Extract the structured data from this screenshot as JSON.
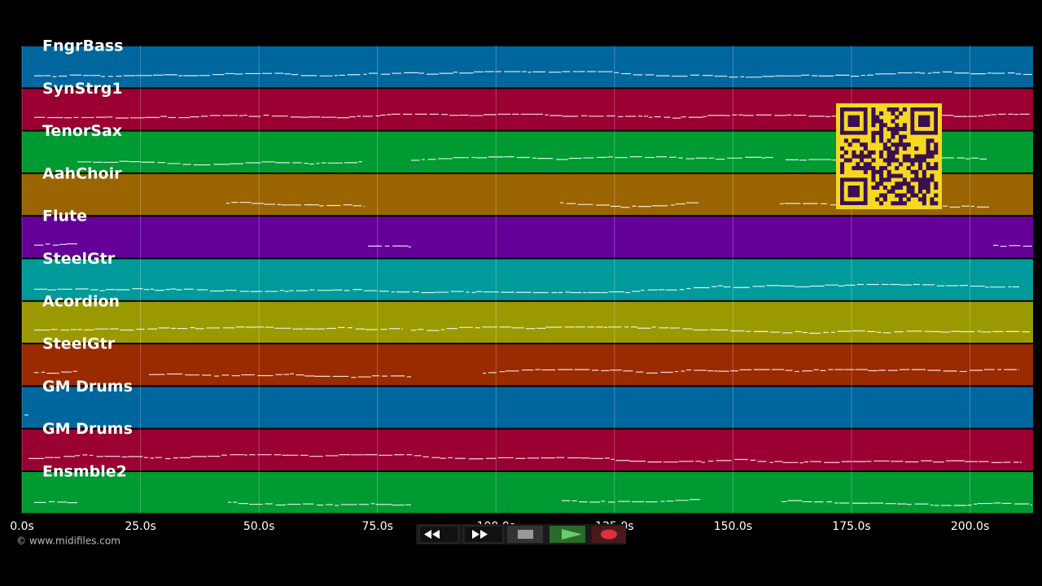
{
  "track_lanes": {
    "tracks": [
      {
        "name": "FngrBass",
        "color": "#00669e"
      },
      {
        "name": "SynStrg1",
        "color": "#9a0032"
      },
      {
        "name": "TenorSax",
        "color": "#009a32"
      },
      {
        "name": "AahChoir",
        "color": "#9a6400"
      },
      {
        "name": "Flute",
        "color": "#640098"
      },
      {
        "name": "SteelGtr",
        "color": "#009a9a"
      },
      {
        "name": "Acordion",
        "color": "#9a9a00"
      },
      {
        "name": "SteelGtr",
        "color": "#9a2a00"
      },
      {
        "name": "GM Drums",
        "color": "#00669e"
      },
      {
        "name": "GM Drums",
        "color": "#9a0032"
      },
      {
        "name": "Ensmble2",
        "color": "#009a32"
      }
    ],
    "xlim": [
      0,
      213.3
    ],
    "xticks": [
      {
        "value": 0,
        "label": "0.0s"
      },
      {
        "value": 25,
        "label": "25.0s"
      },
      {
        "value": 50,
        "label": "50.0s"
      },
      {
        "value": 75,
        "label": "75.0s"
      },
      {
        "value": 100,
        "label": "100.0s"
      },
      {
        "value": 125,
        "label": "125.0s"
      },
      {
        "value": 150,
        "label": "150.0s"
      },
      {
        "value": 175,
        "label": "175.0s"
      },
      {
        "value": 200,
        "label": "200.0s"
      }
    ]
  },
  "footer": {
    "credit": "© www.midifiles.com"
  }
}
